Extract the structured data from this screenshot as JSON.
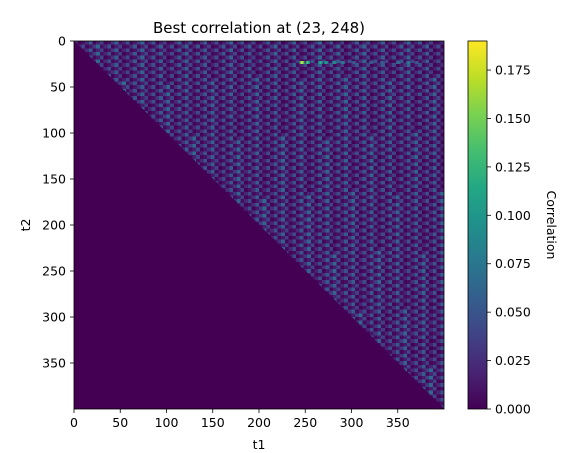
{
  "chart_data": {
    "type": "heatmap",
    "title": "Best correlation at (23, 248)",
    "xlabel": "t1",
    "ylabel": "t2",
    "colorbar_label": "Correlation",
    "colormap": "viridis",
    "grid": false,
    "size": 400,
    "x_range": [
      0,
      400
    ],
    "y_range": [
      0,
      400
    ],
    "y_inverted": true,
    "value_range": [
      0,
      0.19
    ],
    "x_ticks": [
      0,
      50,
      100,
      150,
      200,
      250,
      300,
      350
    ],
    "y_ticks": [
      0,
      50,
      100,
      150,
      200,
      250,
      300,
      350
    ],
    "colorbar_ticks": [
      0.0,
      0.025,
      0.05,
      0.075,
      0.1,
      0.125,
      0.15,
      0.175
    ],
    "x_tick_labels": [
      "0",
      "50",
      "100",
      "150",
      "200",
      "250",
      "300",
      "350"
    ],
    "y_tick_labels": [
      "0",
      "50",
      "100",
      "150",
      "200",
      "250",
      "300",
      "350"
    ],
    "colorbar_tick_labels": [
      "0.000",
      "0.025",
      "0.050",
      "0.075",
      "0.100",
      "0.125",
      "0.150",
      "0.175"
    ],
    "best": {
      "t2": 23,
      "t1": 248,
      "value": 0.19
    },
    "background_value_range": [
      0.0,
      0.04
    ],
    "lower_triangle_value": 0.0,
    "highlight_row": {
      "t2": 23,
      "cells": [
        {
          "t1": 246,
          "value": 0.19
        },
        {
          "t1": 252,
          "value": 0.14
        },
        {
          "t1": 266,
          "value": 0.12
        },
        {
          "t1": 272,
          "value": 0.11
        },
        {
          "t1": 281,
          "value": 0.1
        },
        {
          "t1": 290,
          "value": 0.09
        },
        {
          "t1": 302,
          "value": 0.06
        },
        {
          "t1": 321,
          "value": 0.06
        },
        {
          "t1": 333,
          "value": 0.06
        },
        {
          "t1": 350,
          "value": 0.08
        },
        {
          "t1": 361,
          "value": 0.08
        },
        {
          "t1": 370,
          "value": 0.06
        }
      ]
    }
  }
}
